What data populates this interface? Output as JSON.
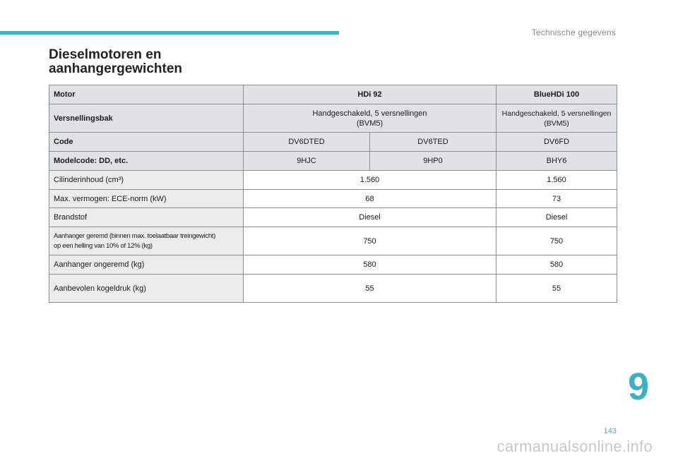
{
  "header": {
    "section_title": "Technische gegevens"
  },
  "title": {
    "line1": "Dieselmotoren en",
    "line2": "aanhangergewichten"
  },
  "table": {
    "row_motor": [
      "Motor",
      "HDi 92",
      "BlueHDi 100"
    ],
    "row_gearbox": [
      "Versnellingsbak",
      "Handgeschakeld, 5 versnellingen",
      "(BVM5)",
      "Handgeschakeld, 5 versnellingen",
      "(BVM5)"
    ],
    "row_code": [
      "Code",
      "DV6DTED",
      "DV6TED",
      "DV6FD"
    ],
    "row_modelcode": [
      "Modelcode: DD, etc.",
      "9HJC",
      "9HP0",
      "BHY6"
    ],
    "row_cylinder": [
      "Cilinderinhoud (cm³)",
      "1.560",
      "1.560"
    ],
    "row_power": [
      "Max. vermogen: ECE-norm (kW)",
      "68",
      "73"
    ],
    "row_fuel": [
      "Brandstof",
      "Diesel",
      "Diesel"
    ],
    "row_braked": [
      "Aanhanger geremd (binnen max. toelaatbaar treingewicht)",
      "op een helling van 10% of 12% (kg)",
      "750",
      "750"
    ],
    "row_unbraked": [
      "Aanhanger ongeremd (kg)",
      "580",
      "580"
    ],
    "row_noseweight": [
      "Aanbevolen kogeldruk (kg)",
      "55",
      "55"
    ]
  },
  "footer": {
    "chapter_number": "9",
    "page_number": "143",
    "watermark": "carmanualsonline.info"
  },
  "colors": {
    "accent": "#3fb0c4",
    "header_row_bg": "#dfe3e5",
    "label_cell_bg": "#ececec"
  }
}
